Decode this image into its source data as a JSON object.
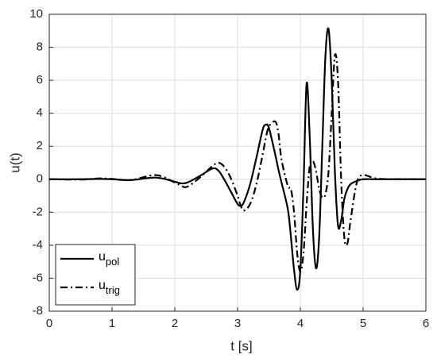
{
  "chart_data": {
    "type": "line",
    "xlabel": "t [s]",
    "ylabel": "u(t)",
    "x": [
      0,
      0.5,
      0.8,
      1.0,
      1.3,
      1.7,
      2.0,
      2.1,
      2.2,
      2.4,
      2.6,
      2.7,
      2.8,
      2.9,
      3.0,
      3.05,
      3.1,
      3.2,
      3.3,
      3.4,
      3.45,
      3.5,
      3.6,
      3.65,
      3.7,
      3.8,
      3.85,
      3.9,
      3.95,
      4.0,
      4.05,
      4.1,
      4.15,
      4.2,
      4.25,
      4.3,
      4.35,
      4.4,
      4.45,
      4.5,
      4.55,
      4.6,
      4.65,
      4.7,
      4.75,
      4.8,
      4.9,
      5.0,
      5.2,
      5.5,
      6.0
    ],
    "series": [
      {
        "name": "u",
        "subscript": "pol",
        "color": "#000000",
        "dash": "solid",
        "values": [
          0,
          0,
          0.02,
          0,
          -0.05,
          0.1,
          -0.15,
          -0.25,
          -0.2,
          0.2,
          0.65,
          0.5,
          -0.1,
          -0.8,
          -1.5,
          -1.6,
          -1.4,
          -0.3,
          1.3,
          3.0,
          3.3,
          3.1,
          1.5,
          0.6,
          -0.2,
          -1.8,
          -3.5,
          -5.5,
          -6.7,
          -5.5,
          -0.5,
          5.8,
          2.5,
          -3.0,
          -5.4,
          -3.5,
          2.0,
          7.5,
          9.1,
          6.0,
          0.5,
          -2.8,
          -2.5,
          -1.2,
          -0.6,
          -0.3,
          -0.1,
          0,
          0,
          0,
          0
        ]
      },
      {
        "name": "u",
        "subscript": "trig",
        "color": "#000000",
        "dash": "dashdot",
        "values": [
          0,
          -0.02,
          0.05,
          0.02,
          -0.05,
          0.25,
          -0.2,
          -0.4,
          -0.45,
          0.1,
          0.8,
          1.0,
          0.7,
          0,
          -1.0,
          -1.6,
          -1.9,
          -1.5,
          -0.3,
          1.5,
          2.5,
          3.2,
          3.5,
          2.8,
          1.2,
          -0.4,
          -0.6,
          -2.0,
          -4.5,
          -5.6,
          -4.5,
          -1.5,
          0.8,
          1.1,
          0.5,
          -0.6,
          -1.1,
          -0.9,
          0.5,
          4.0,
          7.5,
          6.0,
          0,
          -3.5,
          -3.9,
          -2.5,
          -0.2,
          0.25,
          0.05,
          0,
          0
        ]
      }
    ],
    "xlim": [
      0,
      6
    ],
    "xticks": [
      0,
      1,
      2,
      3,
      4,
      5,
      6
    ],
    "ylim": [
      -8,
      10
    ],
    "yticks": [
      -8,
      -6,
      -4,
      -2,
      0,
      2,
      4,
      6,
      8,
      10
    ],
    "grid": true,
    "legend": "lower-left"
  }
}
